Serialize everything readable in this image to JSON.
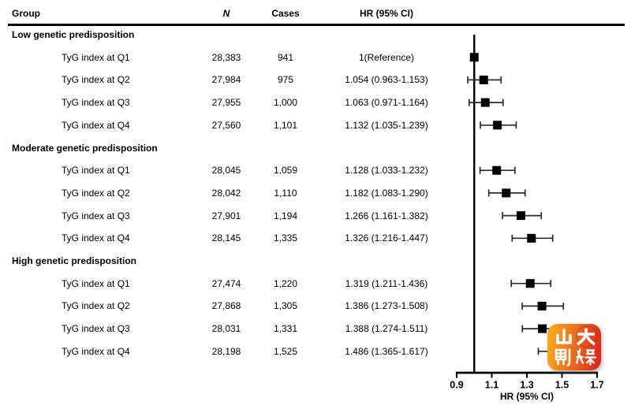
{
  "columns": {
    "group": "Group",
    "n": "N",
    "cases": "Cases",
    "hr": "HR (95% CI)"
  },
  "chart_data": {
    "type": "scatter",
    "subtype": "forest-plot",
    "title": "",
    "xlabel": "HR (95% CI)",
    "xlim": [
      0.9,
      1.7
    ],
    "x_ticks": [
      "0.9",
      "1.1",
      "1.3",
      "1.5",
      "1.7"
    ],
    "reference_line": 1.0,
    "marker": "black-square",
    "groups": [
      {
        "label": "Low genetic predisposition",
        "rows": [
          {
            "label": "TyG index at Q1",
            "n": "28,383",
            "cases": "941",
            "hr": 1.0,
            "ci_low": null,
            "ci_high": null,
            "hr_text": "1(Reference)"
          },
          {
            "label": "TyG index at Q2",
            "n": "27,984",
            "cases": "975",
            "hr": 1.054,
            "ci_low": 0.963,
            "ci_high": 1.153,
            "hr_text": "1.054 (0.963-1.153)"
          },
          {
            "label": "TyG index at Q3",
            "n": "27,955",
            "cases": "1,000",
            "hr": 1.063,
            "ci_low": 0.971,
            "ci_high": 1.164,
            "hr_text": "1.063 (0.971-1.164)"
          },
          {
            "label": "TyG index at Q4",
            "n": "27,560",
            "cases": "1,101",
            "hr": 1.132,
            "ci_low": 1.035,
            "ci_high": 1.239,
            "hr_text": "1.132 (1.035-1.239)"
          }
        ]
      },
      {
        "label": "Moderate genetic predisposition",
        "rows": [
          {
            "label": "TyG index at Q1",
            "n": "28,045",
            "cases": "1,059",
            "hr": 1.128,
            "ci_low": 1.033,
            "ci_high": 1.232,
            "hr_text": "1.128 (1.033-1.232)"
          },
          {
            "label": "TyG index at Q2",
            "n": "28,042",
            "cases": "1,110",
            "hr": 1.182,
            "ci_low": 1.083,
            "ci_high": 1.29,
            "hr_text": "1.182 (1.083-1.290)"
          },
          {
            "label": "TyG index at Q3",
            "n": "27,901",
            "cases": "1,194",
            "hr": 1.266,
            "ci_low": 1.161,
            "ci_high": 1.382,
            "hr_text": "1.266 (1.161-1.382)"
          },
          {
            "label": "TyG index at Q4",
            "n": "28,145",
            "cases": "1,335",
            "hr": 1.326,
            "ci_low": 1.216,
            "ci_high": 1.447,
            "hr_text": "1.326 (1.216-1.447)"
          }
        ]
      },
      {
        "label": "High genetic predisposition",
        "rows": [
          {
            "label": "TyG index at Q1",
            "n": "27,474",
            "cases": "1,220",
            "hr": 1.319,
            "ci_low": 1.211,
            "ci_high": 1.436,
            "hr_text": "1.319 (1.211-1.436)"
          },
          {
            "label": "TyG index at Q2",
            "n": "27,868",
            "cases": "1,305",
            "hr": 1.386,
            "ci_low": 1.273,
            "ci_high": 1.508,
            "hr_text": "1.386 (1.273-1.508)"
          },
          {
            "label": "TyG index at Q3",
            "n": "28,031",
            "cases": "1,331",
            "hr": 1.388,
            "ci_low": 1.274,
            "ci_high": 1.511,
            "hr_text": "1.388 (1.274-1.511)"
          },
          {
            "label": "TyG index at Q4",
            "n": "28,198",
            "cases": "1,525",
            "hr": 1.486,
            "ci_low": 1.365,
            "ci_high": 1.617,
            "hr_text": "1.486 (1.365-1.617)"
          }
        ]
      }
    ]
  },
  "watermark": {
    "line1": "山大",
    "line2": "融媒"
  },
  "colors": {
    "text": "#000000",
    "marker": "#000000",
    "whisker": "#2b2b2b",
    "axis": "#000000",
    "watermark_gradient_start": "#f8a61e",
    "watermark_gradient_end": "#da2b1b"
  }
}
